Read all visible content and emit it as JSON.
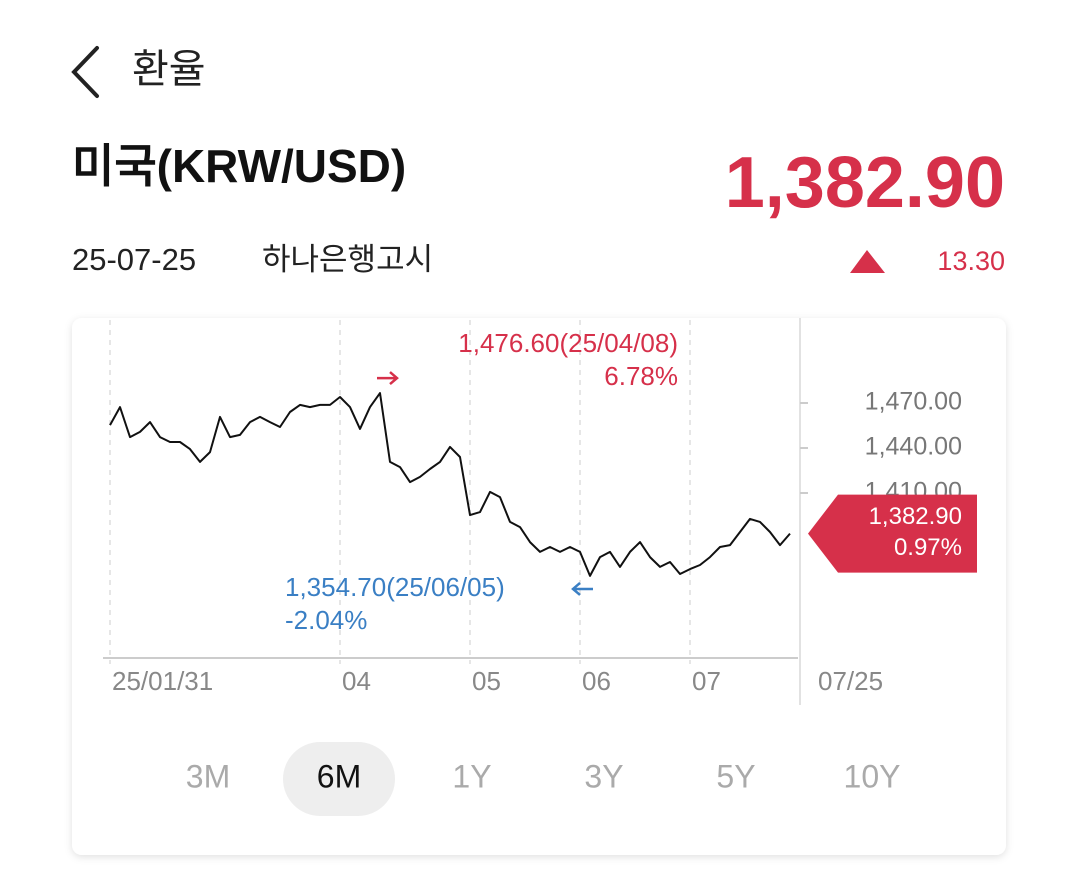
{
  "header": {
    "title": "환율"
  },
  "currency": {
    "name": "미국(KRW/USD)",
    "rate": "1,382.90",
    "date": "25-07-25",
    "source": "하나은행고시",
    "change": "13.30"
  },
  "chart_data": {
    "type": "line",
    "categories": [
      "25/01/31",
      null,
      null,
      null,
      null,
      null,
      null,
      null,
      null,
      null,
      null,
      null,
      null,
      null,
      null,
      null,
      null,
      null,
      null,
      null,
      null,
      null,
      null,
      "04",
      null,
      null,
      null,
      null,
      null,
      null,
      null,
      null,
      null,
      null,
      null,
      null,
      "05",
      null,
      null,
      null,
      null,
      null,
      null,
      null,
      null,
      null,
      null,
      "06",
      null,
      null,
      null,
      null,
      null,
      null,
      null,
      null,
      null,
      null,
      "07",
      null,
      null,
      null,
      null,
      null,
      null,
      null,
      null,
      null,
      "07/25"
    ],
    "series": [
      {
        "color": "#111111",
        "values": [
          1455.3,
          1467.3,
          1447.3,
          1450.7,
          1457.3,
          1447.3,
          1444,
          1444,
          1439.3,
          1430.7,
          1437.3,
          1460.7,
          1447.3,
          1448.7,
          1457.3,
          1460.7,
          1457.3,
          1454,
          1464,
          1468.7,
          1467.3,
          1468.7,
          1468.7,
          1474,
          1467.3,
          1452.7,
          1467.3,
          1476.6,
          1430.7,
          1427.3,
          1417.3,
          1420.7,
          1426,
          1430.7,
          1440.7,
          1434,
          1395.3,
          1397.3,
          1410.7,
          1407.3,
          1390.7,
          1387.3,
          1377.3,
          1370.7,
          1374,
          1370.7,
          1374,
          1370.7,
          1354.7,
          1367.3,
          1370.7,
          1360.7,
          1370.7,
          1377.3,
          1367.3,
          1360.7,
          1364,
          1356,
          1359.3,
          1362,
          1367.3,
          1374,
          1375.3,
          1384,
          1392.7,
          1390.7,
          1384,
          1375.3,
          1382.9
        ]
      }
    ],
    "ylim": [
      1300,
      1520
    ],
    "yticks": [
      {
        "value": 1470,
        "label": "1,470.00"
      },
      {
        "value": 1440,
        "label": "1,440.00"
      },
      {
        "value": 1410,
        "label": "1,410.00"
      }
    ],
    "max_annotation": {
      "value": 1476.6,
      "label": "1,476.60(25/04/08)",
      "change": "6.78%",
      "color": "#d6304a"
    },
    "min_annotation": {
      "value": 1354.7,
      "label": "1,354.70(25/06/05)",
      "change": "-2.04%",
      "color": "#3a7fc4"
    },
    "current_annotation": {
      "value": 1382.9,
      "label": "1,382.90",
      "change": "0.97%",
      "color": "#d6304a"
    }
  },
  "period_tabs": {
    "options": [
      "3M",
      "6M",
      "1Y",
      "3Y",
      "5Y",
      "10Y"
    ],
    "selected": 1
  }
}
